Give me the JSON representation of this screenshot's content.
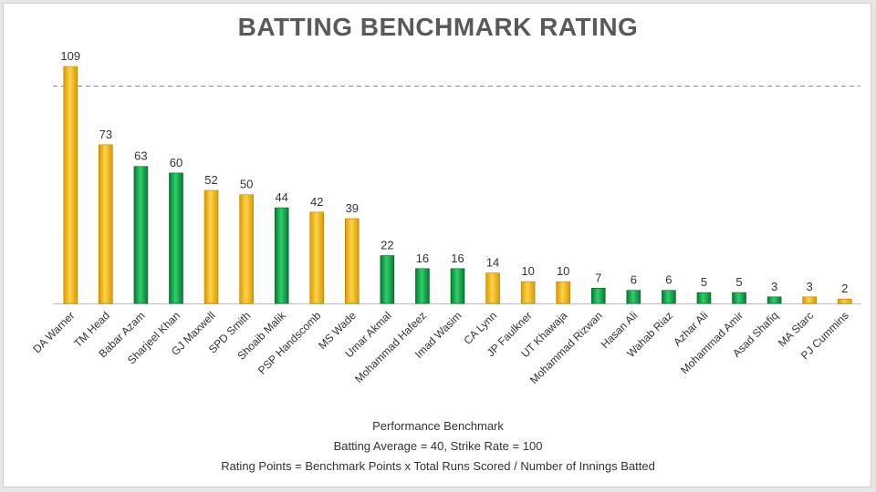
{
  "chart_data": {
    "type": "bar",
    "title": "BATTING BENCHMARK RATING",
    "categories": [
      "DA Warner",
      "TM Head",
      "Babar Azam",
      "Sharjeel Khan",
      "GJ Maxwell",
      "SPD Smith",
      "Shoaib Malik",
      "PSP Handscomb",
      "MS Wade",
      "Umar Akmal",
      "Mohammad Hafeez",
      "Imad Wasim",
      "CA Lynn",
      "JP Faulkner",
      "UT Khawaja",
      "Mohammad Rizwan",
      "Hasan Ali",
      "Wahab Riaz",
      "Azhar Ali",
      "Mohammad Amir",
      "Asad Shafiq",
      "MA Starc",
      "PJ Cummins"
    ],
    "values": [
      109,
      73,
      63,
      60,
      52,
      50,
      44,
      42,
      39,
      22,
      16,
      16,
      14,
      10,
      10,
      7,
      6,
      6,
      5,
      5,
      3,
      3,
      2
    ],
    "bar_colors": [
      "yellow",
      "yellow",
      "green",
      "green",
      "yellow",
      "yellow",
      "green",
      "yellow",
      "yellow",
      "green",
      "green",
      "green",
      "yellow",
      "yellow",
      "yellow",
      "green",
      "green",
      "green",
      "green",
      "green",
      "green",
      "yellow",
      "yellow"
    ],
    "reference_line": 100,
    "ylim": [
      0,
      109
    ],
    "grid": false,
    "colors": {
      "yellow": "#f2b705",
      "green": "#10a84a"
    },
    "notes": [
      "Performance Benchmark",
      "Batting Average = 40,  Strike Rate = 100",
      "Rating Points = Benchmark Points x Total Runs Scored / Number of Innings Batted"
    ]
  }
}
